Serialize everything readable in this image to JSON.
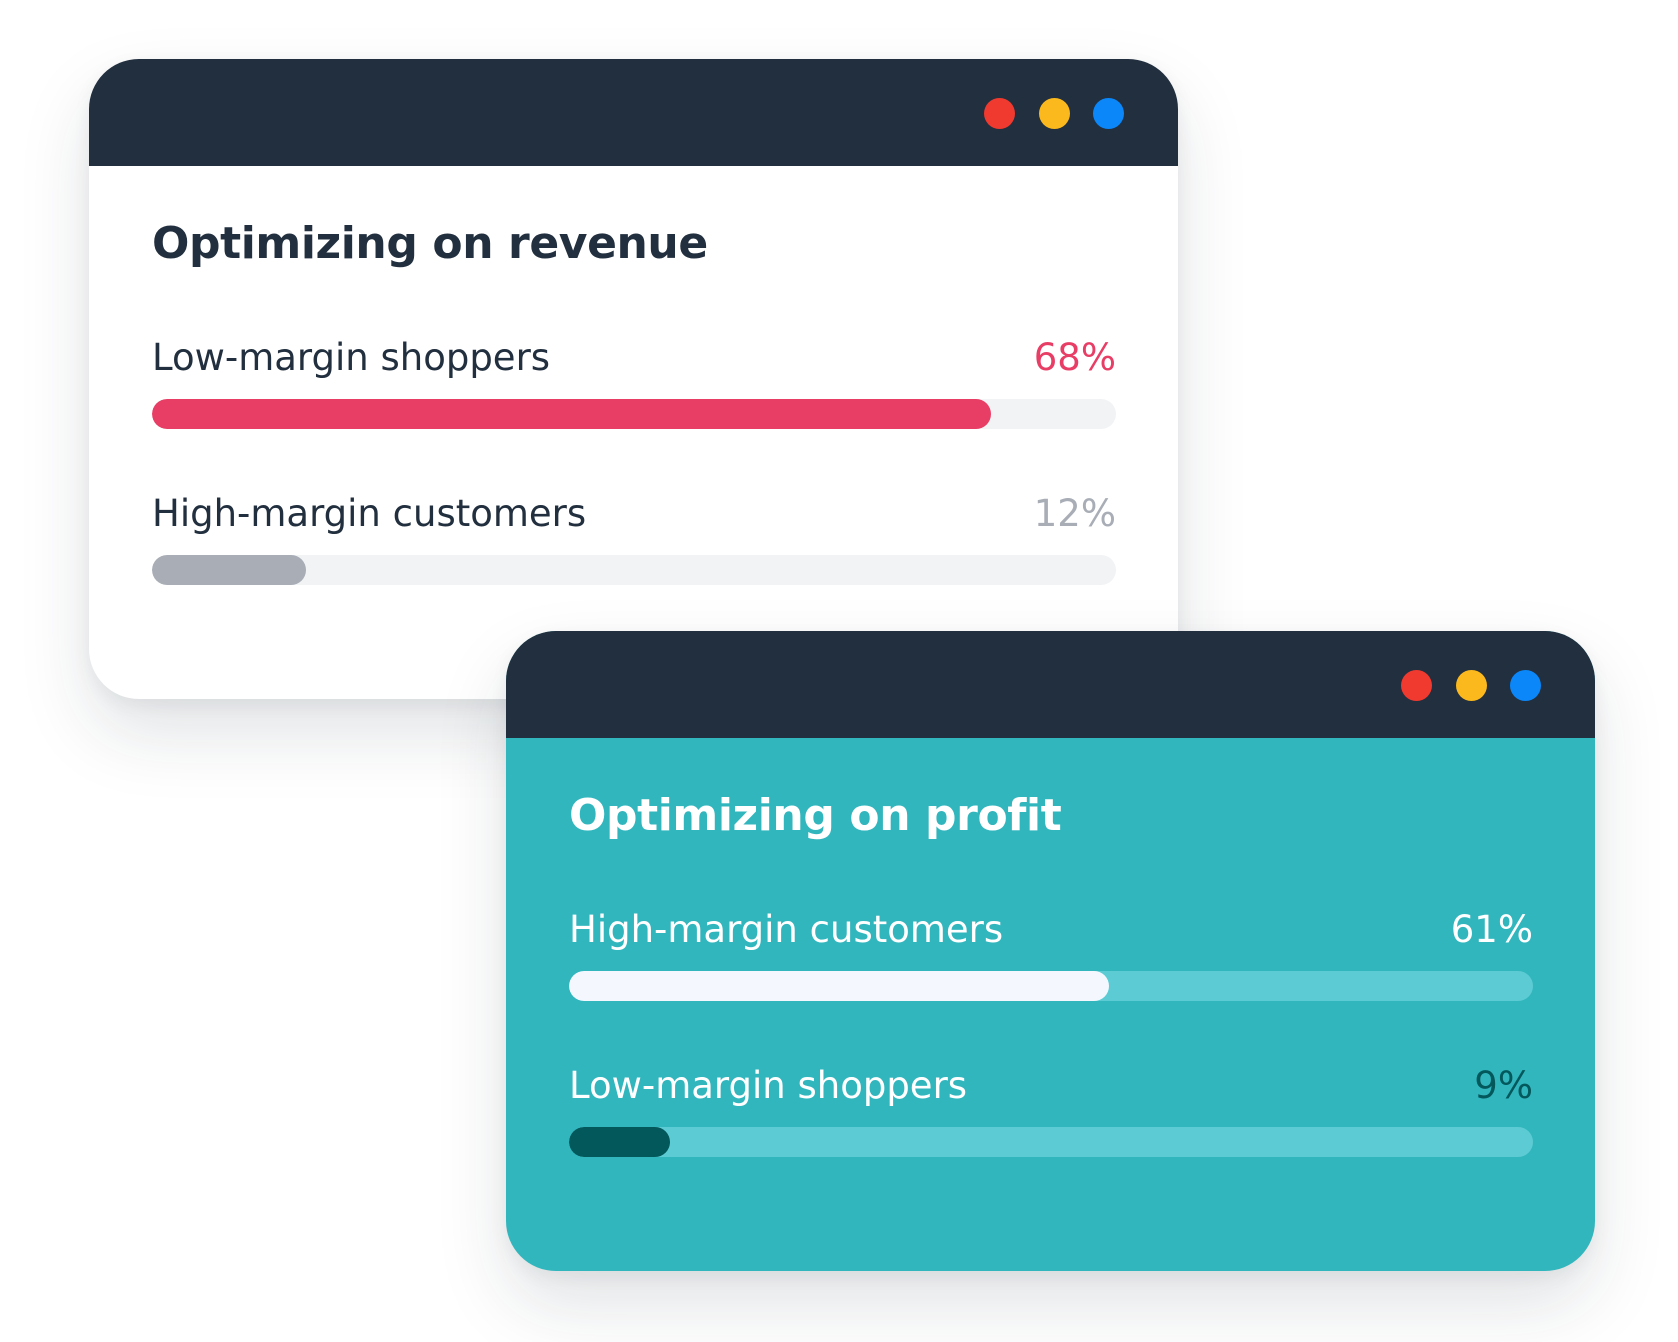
{
  "colors": {
    "titlebar": "#222f3e",
    "dot_red": "#f03a2f",
    "dot_yellow": "#fbb91d",
    "dot_blue": "#0b87f9",
    "revenue_panel_bg": "#ffffff",
    "profit_panel_bg": "#32b6be",
    "dark_text": "#222f3e",
    "white_text": "#ffffff",
    "accent_red": "#e83e66",
    "gray": "#a8adb6",
    "light_track": "#f2f3f5",
    "teal_track": "#5ccbd3",
    "white_fill": "#f4f8fe",
    "dark_teal": "#03585c"
  },
  "revenue_window": {
    "title": "Optimizing on revenue",
    "rows": [
      {
        "label": "Low-margin shoppers",
        "value_text": "68%",
        "fill_fraction": 0.87,
        "value_color": "#e83e66",
        "fill_color": "#e83e66",
        "track_color": "#f2f3f5"
      },
      {
        "label": "High-margin customers",
        "value_text": "12%",
        "fill_fraction": 0.16,
        "value_color": "#a8adb6",
        "fill_color": "#a8adb6",
        "track_color": "#f2f3f5"
      }
    ]
  },
  "profit_window": {
    "title": "Optimizing on profit",
    "rows": [
      {
        "label": "High-margin customers",
        "value_text": "61%",
        "fill_fraction": 0.56,
        "value_color": "#ffffff",
        "fill_color": "#f4f8fe",
        "track_color": "#5ccbd3"
      },
      {
        "label": "Low-margin shoppers",
        "value_text": "9%",
        "fill_fraction": 0.105,
        "value_color": "#03585c",
        "fill_color": "#03585c",
        "track_color": "#5ccbd3"
      }
    ]
  }
}
